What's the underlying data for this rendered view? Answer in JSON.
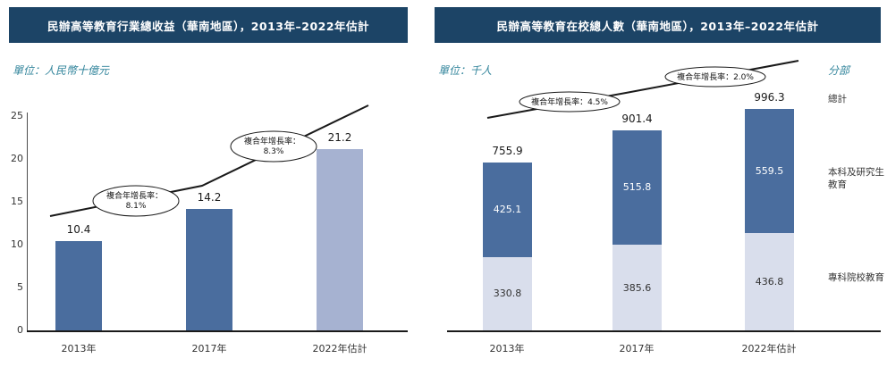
{
  "chart_data": [
    {
      "type": "bar",
      "title": "民辦高等教育行業總收益（華南地區），2013年–2022年估計",
      "unit_label": "單位：人民幣十億元",
      "categories": [
        "2013年",
        "2017年",
        "2022年估計"
      ],
      "values": [
        10.4,
        14.2,
        21.2
      ],
      "ylim": [
        0,
        25
      ],
      "yticks": [
        0,
        5,
        10,
        15,
        20,
        25
      ],
      "grid": false,
      "legend_position": "none",
      "bar_colors": [
        "#4a6d9e",
        "#4a6d9e",
        "#a6b2d1"
      ],
      "annotations": [
        {
          "line1": "複合年增長率：",
          "line2": "8.1%"
        },
        {
          "line1": "複合年增長率：",
          "line2": "8.3%"
        }
      ]
    },
    {
      "type": "stacked-bar",
      "title": "民辦高等教育在校總人數（華南地區），2013年–2022年估計",
      "unit_label": "單位：千人",
      "categories": [
        "2013年",
        "2017年",
        "2022年估計"
      ],
      "totals": [
        755.9,
        901.4,
        996.3
      ],
      "series": [
        {
          "name": "本科及研究生教育",
          "values": [
            425.1,
            515.8,
            559.5
          ],
          "color": "#4a6d9e"
        },
        {
          "name": "專科院校教育",
          "values": [
            330.8,
            385.6,
            436.8
          ],
          "color": "#d9deec"
        }
      ],
      "legend": {
        "title": "分部",
        "items": [
          "總計",
          "本科及研究生教育",
          "專科院校教育"
        ]
      },
      "legend_position": "right",
      "annotations": [
        {
          "text": "複合年增長率：4.5%"
        },
        {
          "text": "複合年增長率：2.0%"
        }
      ]
    }
  ],
  "colors": {
    "header_bg": "#1c4466",
    "bar_dark": "#4a6d9e",
    "bar_light": "#a6b2d1",
    "seg_light": "#d9deec",
    "unit_text": "#31849b",
    "trend_line": "#1a1a1a",
    "axis": "#1a1a1a"
  }
}
